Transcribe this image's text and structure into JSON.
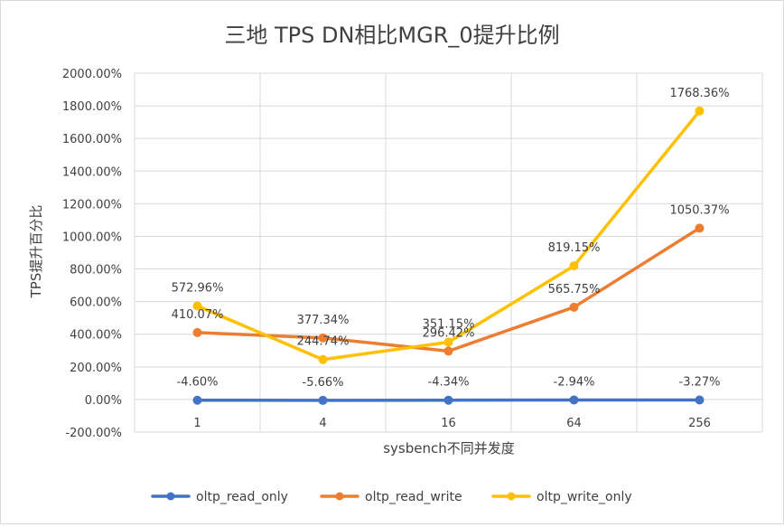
{
  "chart_data": {
    "type": "line",
    "title": "三地 TPS DN相比MGR_0提升比例",
    "xlabel": "sysbench不同并发度",
    "ylabel": "TPS提升百分比",
    "categories": [
      "1",
      "4",
      "16",
      "64",
      "256"
    ],
    "ylim": [
      -200,
      2000
    ],
    "yticks": [
      -200,
      0,
      200,
      400,
      600,
      800,
      1000,
      1200,
      1400,
      1600,
      1800,
      2000
    ],
    "ytick_labels": [
      "-200.00%",
      "0.00%",
      "200.00%",
      "400.00%",
      "600.00%",
      "800.00%",
      "1000.00%",
      "1200.00%",
      "1400.00%",
      "1600.00%",
      "1800.00%",
      "2000.00%"
    ],
    "grid": "vertical and horizontal",
    "legend_position": "bottom",
    "series": [
      {
        "name": "oltp_read_only",
        "color": "#4472c4",
        "values": [
          -4.6,
          -5.66,
          -4.34,
          -2.94,
          -3.27
        ],
        "labels": [
          "-4.60%",
          "-5.66%",
          "-4.34%",
          "-2.94%",
          "-3.27%"
        ]
      },
      {
        "name": "oltp_read_write",
        "color": "#ed7d31",
        "values": [
          410.07,
          377.34,
          296.42,
          565.75,
          1050.37
        ],
        "labels": [
          "410.07%",
          "377.34%",
          "296.42%",
          "565.75%",
          "1050.37%"
        ]
      },
      {
        "name": "oltp_write_only",
        "color": "#ffc000",
        "values": [
          572.96,
          244.74,
          351.15,
          819.15,
          1768.36
        ],
        "labels": [
          "572.96%",
          "244.74%",
          "351.15%",
          "819.15%",
          "1768.36%"
        ]
      }
    ]
  }
}
